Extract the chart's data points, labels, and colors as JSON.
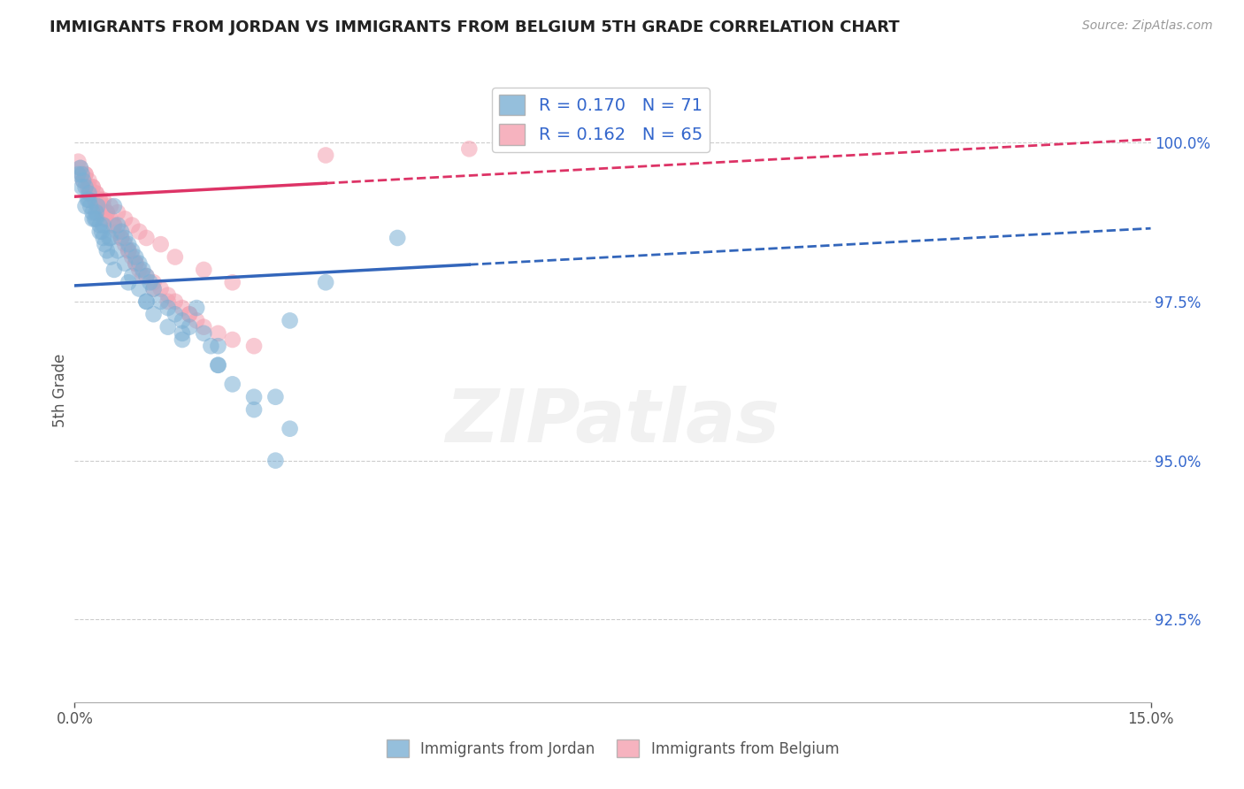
{
  "title": "IMMIGRANTS FROM JORDAN VS IMMIGRANTS FROM BELGIUM 5TH GRADE CORRELATION CHART",
  "source": "Source: ZipAtlas.com",
  "ylabel": "5th Grade",
  "y_ticks": [
    92.5,
    95.0,
    97.5,
    100.0
  ],
  "y_tick_labels": [
    "92.5%",
    "95.0%",
    "97.5%",
    "100.0%"
  ],
  "x_min": 0.0,
  "x_max": 15.0,
  "y_min": 91.2,
  "y_max": 101.0,
  "jordan_R": 0.17,
  "jordan_N": 71,
  "belgium_R": 0.162,
  "belgium_N": 65,
  "jordan_color": "#7BAFD4",
  "belgium_color": "#F4A0B0",
  "jordan_line_color": "#3366BB",
  "belgium_line_color": "#DD3366",
  "legend_text_color": "#3366CC",
  "background_color": "#FFFFFF",
  "jordan_trend_x0": 0.0,
  "jordan_trend_y0": 97.75,
  "jordan_trend_x1": 15.0,
  "jordan_trend_y1": 98.65,
  "jordan_solid_x1": 5.5,
  "belgium_trend_x0": 0.0,
  "belgium_trend_y0": 99.15,
  "belgium_trend_x1": 15.0,
  "belgium_trend_y1": 100.05,
  "belgium_solid_x1": 3.5,
  "jordan_scatter_x": [
    0.05,
    0.08,
    0.1,
    0.12,
    0.15,
    0.18,
    0.2,
    0.22,
    0.25,
    0.28,
    0.3,
    0.32,
    0.35,
    0.38,
    0.4,
    0.42,
    0.45,
    0.48,
    0.5,
    0.55,
    0.6,
    0.65,
    0.7,
    0.75,
    0.8,
    0.85,
    0.9,
    0.95,
    1.0,
    1.05,
    1.1,
    1.2,
    1.3,
    1.4,
    1.5,
    1.6,
    1.7,
    1.8,
    1.9,
    2.0,
    2.2,
    2.5,
    2.8,
    3.0,
    3.5,
    4.5,
    0.1,
    0.2,
    0.3,
    0.4,
    0.5,
    0.6,
    0.7,
    0.8,
    0.9,
    1.0,
    1.1,
    1.3,
    1.5,
    2.0,
    2.5,
    3.0,
    0.15,
    0.25,
    0.35,
    0.55,
    0.75,
    1.0,
    1.5,
    2.0,
    2.8
  ],
  "jordan_scatter_y": [
    99.5,
    99.6,
    99.5,
    99.4,
    99.3,
    99.1,
    99.2,
    99.0,
    98.9,
    98.8,
    98.8,
    99.0,
    98.7,
    98.6,
    98.5,
    98.4,
    98.3,
    98.5,
    98.2,
    99.0,
    98.7,
    98.6,
    98.5,
    98.4,
    98.3,
    98.2,
    98.1,
    98.0,
    97.9,
    97.8,
    97.7,
    97.5,
    97.4,
    97.3,
    97.2,
    97.1,
    97.4,
    97.0,
    96.8,
    96.5,
    96.2,
    95.8,
    95.0,
    97.2,
    97.8,
    98.5,
    99.3,
    99.1,
    98.9,
    98.7,
    98.5,
    98.3,
    98.1,
    97.9,
    97.7,
    97.5,
    97.3,
    97.1,
    96.9,
    96.5,
    96.0,
    95.5,
    99.0,
    98.8,
    98.6,
    98.0,
    97.8,
    97.5,
    97.0,
    96.8,
    96.0
  ],
  "belgium_scatter_x": [
    0.05,
    0.08,
    0.1,
    0.12,
    0.15,
    0.18,
    0.2,
    0.22,
    0.25,
    0.28,
    0.3,
    0.32,
    0.35,
    0.38,
    0.4,
    0.42,
    0.45,
    0.5,
    0.55,
    0.6,
    0.65,
    0.7,
    0.75,
    0.8,
    0.85,
    0.9,
    1.0,
    1.1,
    1.2,
    1.3,
    1.4,
    1.5,
    1.6,
    1.7,
    1.8,
    2.0,
    2.2,
    2.5,
    0.15,
    0.25,
    0.35,
    0.45,
    0.55,
    0.65,
    0.75,
    0.85,
    0.95,
    1.1,
    1.3,
    1.6,
    0.3,
    0.5,
    0.7,
    0.9,
    1.2,
    1.4,
    1.8,
    2.2,
    3.5,
    5.5,
    0.2,
    0.4,
    0.6,
    0.8,
    1.0
  ],
  "belgium_scatter_y": [
    99.7,
    99.6,
    99.5,
    99.4,
    99.5,
    99.3,
    99.4,
    99.2,
    99.3,
    99.1,
    99.2,
    99.0,
    99.1,
    98.9,
    99.0,
    98.8,
    98.9,
    98.8,
    98.7,
    98.6,
    98.5,
    98.4,
    98.3,
    98.2,
    98.1,
    98.0,
    97.9,
    97.8,
    97.7,
    97.6,
    97.5,
    97.4,
    97.3,
    97.2,
    97.1,
    97.0,
    96.9,
    96.8,
    99.5,
    99.3,
    99.1,
    98.9,
    98.7,
    98.5,
    98.3,
    98.1,
    97.9,
    97.7,
    97.5,
    97.3,
    99.2,
    99.0,
    98.8,
    98.6,
    98.4,
    98.2,
    98.0,
    97.8,
    99.8,
    99.9,
    99.3,
    99.1,
    98.9,
    98.7,
    98.5
  ]
}
